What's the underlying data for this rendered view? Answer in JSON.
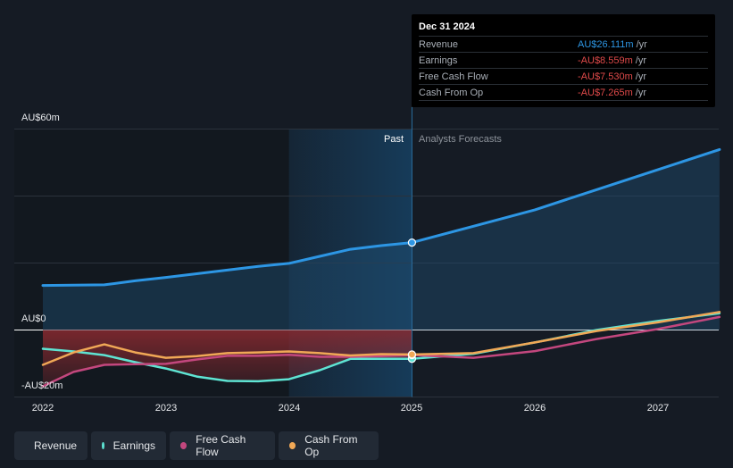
{
  "chart_data": {
    "type": "line",
    "title": "",
    "xlabel": "",
    "ylabel": "",
    "x_ticks": [
      "2022",
      "2023",
      "2024",
      "2025",
      "2026",
      "2027"
    ],
    "xlim": [
      2022.0,
      2027.5
    ],
    "ylim": [
      -20,
      60
    ],
    "y_labels": [
      "AU$60m",
      "AU$0",
      "-AU$20m"
    ],
    "past_label": "Past",
    "forecast_label": "Analysts Forecasts",
    "highlight_date": 2025.0,
    "series": [
      {
        "name": "Revenue",
        "color": "#2d96e4",
        "x": [
          2022.0,
          2022.5,
          2022.75,
          2023.0,
          2023.25,
          2023.5,
          2023.75,
          2024.0,
          2024.25,
          2024.5,
          2024.75,
          2025.0,
          2025.5,
          2026.0,
          2026.5,
          2027.0,
          2027.5
        ],
        "y": [
          13.3,
          13.5,
          14.7,
          15.7,
          16.8,
          17.9,
          19.0,
          19.9,
          22.0,
          24.1,
          25.2,
          26.1,
          31.0,
          35.9,
          41.9,
          47.9,
          53.9
        ]
      },
      {
        "name": "Earnings",
        "color": "#5ee4d3",
        "x": [
          2022.0,
          2022.25,
          2022.5,
          2022.75,
          2023.0,
          2023.25,
          2023.5,
          2023.75,
          2024.0,
          2024.25,
          2024.5,
          2024.75,
          2025.0,
          2025.5,
          2026.0,
          2026.5,
          2027.0,
          2027.5
        ],
        "y": [
          -5.6,
          -6.4,
          -7.5,
          -9.6,
          -11.5,
          -13.9,
          -15.2,
          -15.3,
          -14.7,
          -12.0,
          -8.6,
          -8.6,
          -8.6,
          -7.1,
          -3.7,
          0.0,
          2.7,
          5.0
        ]
      },
      {
        "name": "Free Cash Flow",
        "color": "#c3477e",
        "x": [
          2022.0,
          2022.25,
          2022.5,
          2022.75,
          2023.0,
          2023.25,
          2023.5,
          2023.75,
          2024.0,
          2024.25,
          2024.5,
          2024.75,
          2025.0,
          2025.5,
          2026.0,
          2026.5,
          2027.0,
          2027.5
        ],
        "y": [
          -16.8,
          -12.5,
          -10.4,
          -10.2,
          -10.1,
          -8.8,
          -7.7,
          -7.7,
          -7.4,
          -8.0,
          -8.0,
          -7.8,
          -7.5,
          -8.3,
          -6.3,
          -2.7,
          0.3,
          3.9
        ]
      },
      {
        "name": "Cash From Op",
        "color": "#f0a856",
        "x": [
          2022.0,
          2022.25,
          2022.5,
          2022.75,
          2023.0,
          2023.25,
          2023.5,
          2023.75,
          2024.0,
          2024.25,
          2024.5,
          2024.75,
          2025.0,
          2025.5,
          2026.0,
          2026.5,
          2027.0,
          2027.5
        ],
        "y": [
          -10.4,
          -6.7,
          -4.3,
          -6.7,
          -8.3,
          -7.8,
          -6.9,
          -6.7,
          -6.4,
          -6.9,
          -7.6,
          -7.2,
          -7.3,
          -6.9,
          -3.7,
          -0.3,
          2.3,
          5.4
        ]
      }
    ]
  },
  "tooltip": {
    "date": "Dec 31 2024",
    "rows": [
      {
        "name": "Revenue",
        "value": "AU$26.111m",
        "unit": "/yr",
        "color": "#2d96e4"
      },
      {
        "name": "Earnings",
        "value": "-AU$8.559m",
        "unit": "/yr",
        "color": "#e04a4a"
      },
      {
        "name": "Free Cash Flow",
        "value": "-AU$7.530m",
        "unit": "/yr",
        "color": "#e04a4a"
      },
      {
        "name": "Cash From Op",
        "value": "-AU$7.265m",
        "unit": "/yr",
        "color": "#e04a4a"
      }
    ]
  },
  "legend": [
    {
      "label": "Revenue",
      "color": "#2d96e4"
    },
    {
      "label": "Earnings",
      "color": "#5ee4d3"
    },
    {
      "label": "Free Cash Flow",
      "color": "#c3477e"
    },
    {
      "label": "Cash From Op",
      "color": "#f0a856"
    }
  ]
}
